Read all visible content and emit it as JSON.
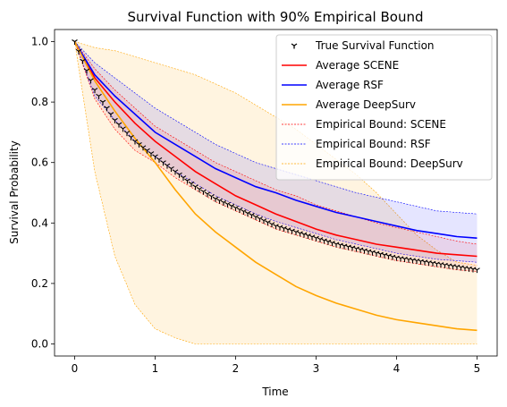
{
  "chart_data": {
    "type": "line",
    "title": "Survival Function with 90% Empirical Bound",
    "xlabel": "Time",
    "ylabel": "Survival Probability",
    "xlim": [
      -0.25,
      5.25
    ],
    "ylim": [
      -0.04,
      1.04
    ],
    "xticks": [
      "0",
      "1",
      "2",
      "3",
      "4",
      "5"
    ],
    "yticks": [
      "0.0",
      "0.2",
      "0.4",
      "0.6",
      "0.8",
      "1.0"
    ],
    "grid": false,
    "legend_position": "top-right",
    "x": [
      0,
      0.25,
      0.5,
      0.75,
      1,
      1.25,
      1.5,
      1.75,
      2,
      2.25,
      2.5,
      2.75,
      3,
      3.25,
      3.5,
      3.75,
      4,
      4.25,
      4.5,
      4.75,
      5
    ],
    "series": [
      {
        "name": "True Survival Function",
        "style": "marker",
        "color": "#000000",
        "values": [
          1.0,
          0.84,
          0.74,
          0.67,
          0.62,
          0.57,
          0.52,
          0.48,
          0.45,
          0.42,
          0.39,
          0.37,
          0.35,
          0.33,
          0.315,
          0.3,
          0.285,
          0.275,
          0.265,
          0.255,
          0.245
        ]
      },
      {
        "name": "Average SCENE",
        "style": "line",
        "color": "#ff0000",
        "values": [
          1.0,
          0.88,
          0.8,
          0.73,
          0.67,
          0.62,
          0.57,
          0.53,
          0.49,
          0.46,
          0.43,
          0.405,
          0.38,
          0.36,
          0.345,
          0.33,
          0.32,
          0.31,
          0.3,
          0.295,
          0.29
        ]
      },
      {
        "name": "Average RSF",
        "style": "line",
        "color": "#0000ff",
        "values": [
          1.0,
          0.89,
          0.82,
          0.76,
          0.7,
          0.66,
          0.62,
          0.58,
          0.55,
          0.52,
          0.5,
          0.475,
          0.455,
          0.435,
          0.42,
          0.405,
          0.39,
          0.375,
          0.365,
          0.355,
          0.35
        ]
      },
      {
        "name": "Average DeepSurv",
        "style": "line",
        "color": "#ffa500",
        "values": [
          1.0,
          0.87,
          0.77,
          0.68,
          0.6,
          0.51,
          0.43,
          0.37,
          0.32,
          0.27,
          0.23,
          0.19,
          0.16,
          0.135,
          0.115,
          0.095,
          0.08,
          0.07,
          0.06,
          0.05,
          0.045
        ]
      },
      {
        "name": "Empirical Bound: SCENE",
        "style": "band",
        "color": "#ff0000",
        "lower": [
          1.0,
          0.81,
          0.71,
          0.64,
          0.6,
          0.55,
          0.51,
          0.47,
          0.44,
          0.41,
          0.38,
          0.36,
          0.34,
          0.32,
          0.305,
          0.29,
          0.275,
          0.265,
          0.255,
          0.245,
          0.24
        ],
        "upper": [
          1.0,
          0.91,
          0.84,
          0.78,
          0.72,
          0.68,
          0.64,
          0.6,
          0.57,
          0.54,
          0.51,
          0.49,
          0.46,
          0.44,
          0.42,
          0.4,
          0.385,
          0.37,
          0.355,
          0.34,
          0.33
        ]
      },
      {
        "name": "Empirical Bound: RSF",
        "style": "band",
        "color": "#0000ff",
        "lower": [
          1.0,
          0.82,
          0.74,
          0.67,
          0.62,
          0.57,
          0.53,
          0.49,
          0.46,
          0.43,
          0.405,
          0.385,
          0.365,
          0.345,
          0.33,
          0.315,
          0.3,
          0.29,
          0.28,
          0.275,
          0.27
        ],
        "upper": [
          1.0,
          0.93,
          0.88,
          0.83,
          0.78,
          0.74,
          0.7,
          0.66,
          0.63,
          0.6,
          0.58,
          0.56,
          0.54,
          0.52,
          0.5,
          0.485,
          0.47,
          0.455,
          0.44,
          0.435,
          0.43
        ]
      },
      {
        "name": "Empirical Bound: DeepSurv",
        "style": "band",
        "color": "#ffa500",
        "lower": [
          1.0,
          0.57,
          0.29,
          0.13,
          0.05,
          0.02,
          0.0,
          0.0,
          0.0,
          0.0,
          0.0,
          0.0,
          0.0,
          0.0,
          0.0,
          0.0,
          0.0,
          0.0,
          0.0,
          0.0,
          0.0
        ],
        "upper": [
          1.0,
          0.98,
          0.97,
          0.95,
          0.93,
          0.91,
          0.89,
          0.86,
          0.83,
          0.79,
          0.75,
          0.71,
          0.66,
          0.61,
          0.56,
          0.5,
          0.43,
          0.36,
          0.31,
          0.27,
          0.26
        ]
      }
    ]
  }
}
